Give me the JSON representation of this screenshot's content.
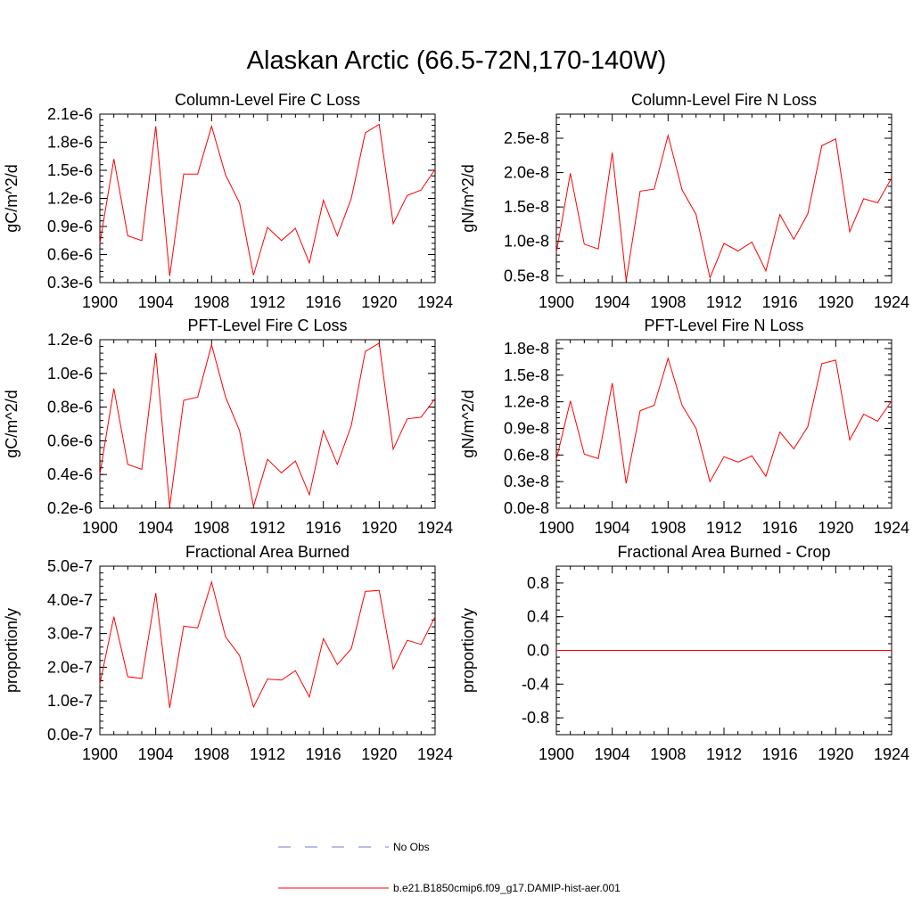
{
  "main_title": "Alaskan Arctic (66.5-72N,170-140W)",
  "colors": {
    "model_line": "#ff0000",
    "obs_line": "#6f7fc8",
    "axis": "#000000"
  },
  "legend": [
    {
      "label": "No Obs",
      "style": "dashed",
      "color": "#6f7fc8"
    },
    {
      "label": "b.e21.B1850cmip6.f09_g17.DAMIP-hist-aer.001",
      "style": "solid",
      "color": "#ff0000"
    }
  ],
  "chart_data": [
    {
      "type": "line",
      "title": "Column-Level Fire C Loss",
      "ylabel": "gC/m^2/d",
      "xlim": [
        1900,
        1924
      ],
      "ylim": [
        3e-07,
        2.1e-06
      ],
      "x_ticks": [
        "1900",
        "1904",
        "1908",
        "1912",
        "1916",
        "1920",
        "1924"
      ],
      "y_ticks": [
        {
          "v": 3e-07,
          "label": "0.3e-6"
        },
        {
          "v": 6e-07,
          "label": "0.6e-6"
        },
        {
          "v": 9e-07,
          "label": "0.9e-6"
        },
        {
          "v": 1.2e-06,
          "label": "1.2e-6"
        },
        {
          "v": 1.5e-06,
          "label": "1.5e-6"
        },
        {
          "v": 1.8e-06,
          "label": "1.8e-6"
        },
        {
          "v": 2.1e-06,
          "label": "2.1e-6"
        }
      ],
      "x": [
        1900,
        1901,
        1902,
        1903,
        1904,
        1905,
        1906,
        1907,
        1908,
        1909,
        1910,
        1911,
        1912,
        1913,
        1914,
        1915,
        1916,
        1917,
        1918,
        1919,
        1920,
        1921,
        1922,
        1923,
        1924
      ],
      "series": [
        {
          "name": "b.e21.B1850cmip6.f09_g17.DAMIP-hist-aer.001",
          "values": [
            7.2e-07,
            1.62e-06,
            8e-07,
            7.5e-07,
            1.97e-06,
            3.7e-07,
            1.46e-06,
            1.46e-06,
            1.97e-06,
            1.45e-06,
            1.15e-06,
            3.8e-07,
            8.9e-07,
            7.5e-07,
            8.8e-07,
            5.1e-07,
            1.18e-06,
            8e-07,
            1.2e-06,
            1.9e-06,
            1.99e-06,
            9.3e-07,
            1.23e-06,
            1.29e-06,
            1.51e-06
          ]
        }
      ]
    },
    {
      "type": "line",
      "title": "Column-Level Fire N Loss",
      "ylabel": "gN/m^2/d",
      "xlim": [
        1900,
        1924
      ],
      "ylim": [
        4e-09,
        2.85e-08
      ],
      "x_ticks": [
        "1900",
        "1904",
        "1908",
        "1912",
        "1916",
        "1920",
        "1924"
      ],
      "y_ticks": [
        {
          "v": 5e-09,
          "label": "0.5e-8"
        },
        {
          "v": 1e-08,
          "label": "1.0e-8"
        },
        {
          "v": 1.5e-08,
          "label": "1.5e-8"
        },
        {
          "v": 2e-08,
          "label": "2.0e-8"
        },
        {
          "v": 2.5e-08,
          "label": "2.5e-8"
        }
      ],
      "x": [
        1900,
        1901,
        1902,
        1903,
        1904,
        1905,
        1906,
        1907,
        1908,
        1909,
        1910,
        1911,
        1912,
        1913,
        1914,
        1915,
        1916,
        1917,
        1918,
        1919,
        1920,
        1921,
        1922,
        1923,
        1924
      ],
      "series": [
        {
          "name": "b.e21.B1850cmip6.f09_g17.DAMIP-hist-aer.001",
          "values": [
            8.4e-09,
            1.99e-08,
            9.6e-09,
            8.9e-09,
            2.29e-08,
            4.3e-09,
            1.73e-08,
            1.76e-08,
            2.54e-08,
            1.75e-08,
            1.39e-08,
            4.7e-09,
            9.7e-09,
            8.6e-09,
            9.9e-09,
            5.7e-09,
            1.39e-08,
            1.03e-08,
            1.4e-08,
            2.39e-08,
            2.49e-08,
            1.14e-08,
            1.62e-08,
            1.56e-08,
            1.92e-08
          ]
        }
      ]
    },
    {
      "type": "line",
      "title": "PFT-Level Fire C Loss",
      "ylabel": "gC/m^2/d",
      "xlim": [
        1900,
        1924
      ],
      "ylim": [
        2e-07,
        1.2e-06
      ],
      "x_ticks": [
        "1900",
        "1904",
        "1908",
        "1912",
        "1916",
        "1920",
        "1924"
      ],
      "y_ticks": [
        {
          "v": 2e-07,
          "label": "0.2e-6"
        },
        {
          "v": 4e-07,
          "label": "0.4e-6"
        },
        {
          "v": 6e-07,
          "label": "0.6e-6"
        },
        {
          "v": 8e-07,
          "label": "0.8e-6"
        },
        {
          "v": 1e-06,
          "label": "1.0e-6"
        },
        {
          "v": 1.2e-06,
          "label": "1.2e-6"
        }
      ],
      "x": [
        1900,
        1901,
        1902,
        1903,
        1904,
        1905,
        1906,
        1907,
        1908,
        1909,
        1910,
        1911,
        1912,
        1913,
        1914,
        1915,
        1916,
        1917,
        1918,
        1919,
        1920,
        1921,
        1922,
        1923,
        1924
      ],
      "series": [
        {
          "name": "b.e21.B1850cmip6.f09_g17.DAMIP-hist-aer.001",
          "values": [
            4e-07,
            9.1e-07,
            4.6e-07,
            4.3e-07,
            1.12e-06,
            2.1e-07,
            8.4e-07,
            8.6e-07,
            1.17e-06,
            8.6e-07,
            6.6e-07,
            2.1e-07,
            4.9e-07,
            4.1e-07,
            4.8e-07,
            2.8e-07,
            6.6e-07,
            4.6e-07,
            6.9e-07,
            1.13e-06,
            1.18e-06,
            5.5e-07,
            7.3e-07,
            7.4e-07,
            8.5e-07
          ]
        }
      ]
    },
    {
      "type": "line",
      "title": "PFT-Level Fire N Loss",
      "ylabel": "gN/m^2/d",
      "xlim": [
        1900,
        1924
      ],
      "ylim": [
        0.0,
        1.9e-08
      ],
      "x_ticks": [
        "1900",
        "1904",
        "1908",
        "1912",
        "1916",
        "1920",
        "1924"
      ],
      "y_ticks": [
        {
          "v": 0.0,
          "label": "0.0e-8"
        },
        {
          "v": 3e-09,
          "label": "0.3e-8"
        },
        {
          "v": 6e-09,
          "label": "0.6e-8"
        },
        {
          "v": 9e-09,
          "label": "0.9e-8"
        },
        {
          "v": 1.2e-08,
          "label": "1.2e-8"
        },
        {
          "v": 1.5e-08,
          "label": "1.5e-8"
        },
        {
          "v": 1.8e-08,
          "label": "1.8e-8"
        }
      ],
      "x": [
        1900,
        1901,
        1902,
        1903,
        1904,
        1905,
        1906,
        1907,
        1908,
        1909,
        1910,
        1911,
        1912,
        1913,
        1914,
        1915,
        1916,
        1917,
        1918,
        1919,
        1920,
        1921,
        1922,
        1923,
        1924
      ],
      "series": [
        {
          "name": "b.e21.B1850cmip6.f09_g17.DAMIP-hist-aer.001",
          "values": [
            5.5e-09,
            1.21e-08,
            6.1e-09,
            5.6e-09,
            1.41e-08,
            2.8e-09,
            1.1e-08,
            1.16e-08,
            1.69e-08,
            1.16e-08,
            9e-09,
            3e-09,
            5.8e-09,
            5.2e-09,
            5.9e-09,
            3.6e-09,
            8.6e-09,
            6.7e-09,
            9.2e-09,
            1.63e-08,
            1.67e-08,
            7.7e-09,
            1.06e-08,
            9.8e-09,
            1.21e-08
          ]
        }
      ]
    },
    {
      "type": "line",
      "title": "Fractional Area Burned",
      "ylabel": "proportion/y",
      "xlim": [
        1900,
        1924
      ],
      "ylim": [
        0.0,
        5e-07
      ],
      "x_ticks": [
        "1900",
        "1904",
        "1908",
        "1912",
        "1916",
        "1920",
        "1924"
      ],
      "y_ticks": [
        {
          "v": 0.0,
          "label": "0.0e-7"
        },
        {
          "v": 1e-07,
          "label": "1.0e-7"
        },
        {
          "v": 2e-07,
          "label": "2.0e-7"
        },
        {
          "v": 3e-07,
          "label": "3.0e-7"
        },
        {
          "v": 4e-07,
          "label": "4.0e-7"
        },
        {
          "v": 5e-07,
          "label": "5.0e-7"
        }
      ],
      "x": [
        1900,
        1901,
        1902,
        1903,
        1904,
        1905,
        1906,
        1907,
        1908,
        1909,
        1910,
        1911,
        1912,
        1913,
        1914,
        1915,
        1916,
        1917,
        1918,
        1919,
        1920,
        1921,
        1922,
        1923,
        1924
      ],
      "series": [
        {
          "name": "b.e21.B1850cmip6.f09_g17.DAMIP-hist-aer.001",
          "values": [
            1.5e-07,
            3.5e-07,
            1.72e-07,
            1.67e-07,
            4.2e-07,
            8e-08,
            3.22e-07,
            3.17e-07,
            4.53e-07,
            2.9e-07,
            2.35e-07,
            8.2e-08,
            1.65e-07,
            1.62e-07,
            1.9e-07,
            1.12e-07,
            2.85e-07,
            2.08e-07,
            2.55e-07,
            4.25e-07,
            4.28e-07,
            1.95e-07,
            2.8e-07,
            2.68e-07,
            3.5e-07
          ]
        }
      ]
    },
    {
      "type": "line",
      "title": "Fractional Area Burned - Crop",
      "ylabel": "proportion/y",
      "xlim": [
        1900,
        1924
      ],
      "ylim": [
        -1.0,
        1.0
      ],
      "x_ticks": [
        "1900",
        "1904",
        "1908",
        "1912",
        "1916",
        "1920",
        "1924"
      ],
      "y_ticks": [
        {
          "v": -0.8,
          "label": "-0.8"
        },
        {
          "v": -0.4,
          "label": "-0.4"
        },
        {
          "v": 0.0,
          "label": "0.0"
        },
        {
          "v": 0.4,
          "label": "0.4"
        },
        {
          "v": 0.8,
          "label": "0.8"
        }
      ],
      "x": [
        1900,
        1901,
        1902,
        1903,
        1904,
        1905,
        1906,
        1907,
        1908,
        1909,
        1910,
        1911,
        1912,
        1913,
        1914,
        1915,
        1916,
        1917,
        1918,
        1919,
        1920,
        1921,
        1922,
        1923,
        1924
      ],
      "series": [
        {
          "name": "b.e21.B1850cmip6.f09_g17.DAMIP-hist-aer.001",
          "values": [
            0,
            0,
            0,
            0,
            0,
            0,
            0,
            0,
            0,
            0,
            0,
            0,
            0,
            0,
            0,
            0,
            0,
            0,
            0,
            0,
            0,
            0,
            0,
            0,
            0
          ]
        }
      ]
    }
  ]
}
